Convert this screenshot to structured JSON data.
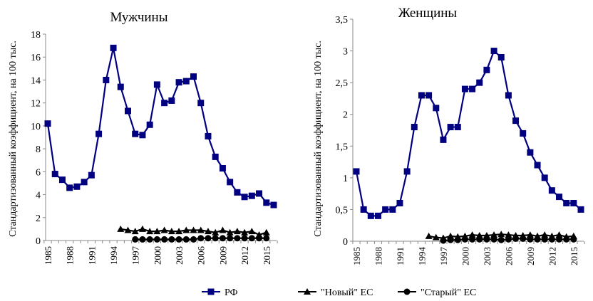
{
  "legend": [
    "РФ",
    "\"Новый\" ЕС",
    "\"Старый\" ЕС"
  ],
  "colors": {
    "rf": "#000080",
    "new": "#000000",
    "old": "#000000"
  },
  "chart_data": [
    {
      "type": "line",
      "title": "Мужчины",
      "ylabel": "Стандартизованный коэффициент, на 100 тыс.",
      "ylim": [
        0,
        18
      ],
      "yticks": [
        "0",
        "2",
        "4",
        "6",
        "8",
        "10",
        "12",
        "14",
        "16",
        "18"
      ],
      "yvals": [
        0,
        2,
        4,
        6,
        8,
        10,
        12,
        14,
        16,
        18
      ],
      "xticks": [
        "1985",
        "1988",
        "1991",
        "1994",
        "1997",
        "2000",
        "2003",
        "2006",
        "2009",
        "2012",
        "2015"
      ],
      "x_start": 1985,
      "x_end": 2016,
      "series": [
        {
          "name": "РФ",
          "x_start": 1985,
          "values": [
            10.2,
            5.8,
            5.3,
            4.6,
            4.7,
            5.1,
            5.7,
            9.3,
            14.0,
            16.8,
            13.4,
            11.3,
            9.3,
            9.2,
            10.1,
            13.6,
            12.0,
            12.2,
            13.8,
            13.9,
            14.3,
            12.0,
            9.1,
            7.3,
            6.3,
            5.1,
            4.2,
            3.8,
            3.9,
            4.1,
            3.3,
            3.1
          ]
        },
        {
          "name": "\"Новый\" ЕС",
          "x_start": 1995,
          "values": [
            1.0,
            0.9,
            0.8,
            1.0,
            0.8,
            0.8,
            0.9,
            0.8,
            0.8,
            0.9,
            0.9,
            0.9,
            0.8,
            0.7,
            0.9,
            0.7,
            0.8,
            0.7,
            0.8,
            0.5,
            0.7
          ]
        },
        {
          "name": "\"Старый\" ЕС",
          "x_start": 1997,
          "values": [
            0.1,
            0.1,
            0.1,
            0.1,
            0.1,
            0.1,
            0.1,
            0.1,
            0.1,
            0.2,
            0.2,
            0.2,
            0.2,
            0.2,
            0.2,
            0.2,
            0.2,
            0.2,
            0.2
          ]
        }
      ]
    },
    {
      "type": "line",
      "title": "Женщины",
      "ylabel": "Стандартизованный коэффициент, на 100 тыс.",
      "ylim": [
        0,
        3.5
      ],
      "yticks": [
        "0",
        "0,5",
        "1",
        "1,5",
        "2",
        "2,5",
        "3",
        "3,5"
      ],
      "yvals": [
        0,
        0.5,
        1,
        1.5,
        2,
        2.5,
        3,
        3.5
      ],
      "xticks": [
        "1985",
        "1988",
        "1991",
        "1994",
        "1997",
        "2000",
        "2003",
        "2006",
        "2009",
        "2012",
        "2015"
      ],
      "x_start": 1985,
      "x_end": 2016,
      "series": [
        {
          "name": "РФ",
          "x_start": 1985,
          "values": [
            1.1,
            0.5,
            0.4,
            0.4,
            0.5,
            0.5,
            0.6,
            1.1,
            1.8,
            2.3,
            2.3,
            2.1,
            1.6,
            1.8,
            1.8,
            2.4,
            2.4,
            2.5,
            2.7,
            3.0,
            2.9,
            2.3,
            1.9,
            1.7,
            1.4,
            1.2,
            1.0,
            0.8,
            0.7,
            0.6,
            0.6,
            0.5
          ]
        },
        {
          "name": "\"Новый\" ЕС",
          "x_start": 1995,
          "values": [
            0.08,
            0.06,
            0.05,
            0.08,
            0.07,
            0.08,
            0.1,
            0.09,
            0.09,
            0.1,
            0.11,
            0.1,
            0.09,
            0.09,
            0.1,
            0.08,
            0.1,
            0.08,
            0.1,
            0.07,
            0.08
          ]
        },
        {
          "name": "\"Старый\" ЕС",
          "x_start": 1997,
          "values": [
            0.01,
            0.02,
            0.02,
            0.03,
            0.03,
            0.03,
            0.03,
            0.03,
            0.02,
            0.03,
            0.04,
            0.04,
            0.03,
            0.03,
            0.03,
            0.03,
            0.03,
            0.03,
            0.03
          ]
        }
      ]
    }
  ]
}
